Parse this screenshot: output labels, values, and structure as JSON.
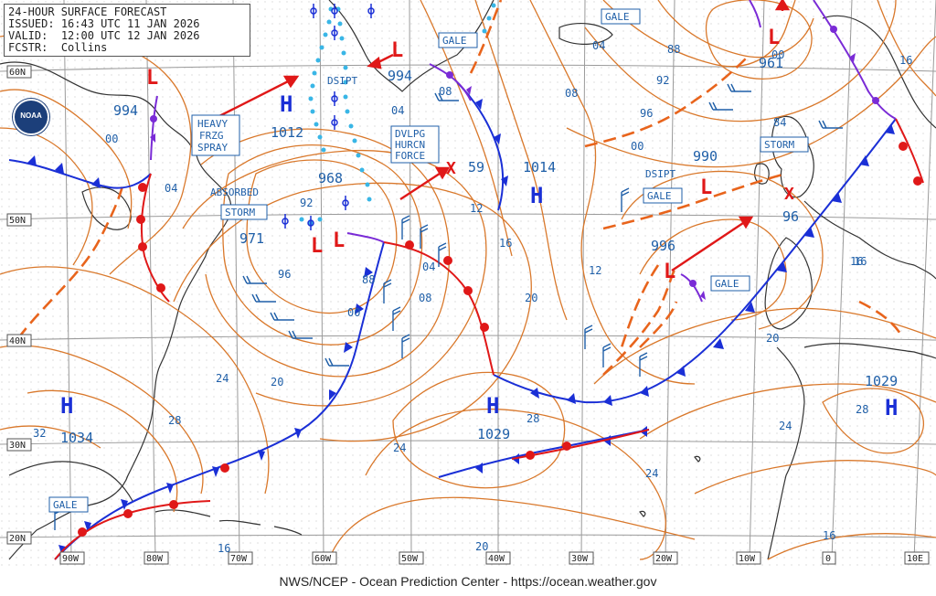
{
  "header": {
    "title": "24-HOUR SURFACE FORECAST",
    "issued_label": "ISSUED:",
    "issued": "16:43 UTC 11 JAN 2026",
    "valid_label": "VALID:",
    "valid": "12:00 UTC 12 JAN 2026",
    "fcstr_label": "FCSTR:",
    "fcstr": "Collins"
  },
  "footer": "NWS/NCEP - Ocean Prediction Center - https://ocean.weather.gov",
  "logo_text": "NOAA",
  "lat_labels": [
    "60N",
    "50N",
    "40N",
    "30N",
    "20N"
  ],
  "lon_labels": [
    "90W",
    "80W",
    "70W",
    "60W",
    "50W",
    "40W",
    "30W",
    "20W",
    "10W",
    "0",
    "10E"
  ],
  "isobar_labels": [
    "04",
    "00",
    "04",
    "24",
    "28",
    "32",
    "20",
    "16",
    "12",
    "08",
    "92",
    "96",
    "88",
    "00",
    "04",
    "08",
    "20",
    "16",
    "24",
    "28",
    "24",
    "20",
    "16",
    "04",
    "88",
    "92",
    "96",
    "00",
    "12",
    "16",
    "08",
    "84",
    "00",
    "16",
    "20",
    "24",
    "28",
    "16"
  ],
  "highs": [
    {
      "letter": "H",
      "pressure": "1012"
    },
    {
      "letter": "H",
      "pressure": "1014"
    },
    {
      "letter": "H",
      "pressure": "1034"
    },
    {
      "letter": "H",
      "pressure": "1029"
    },
    {
      "letter": "H",
      "pressure": "1029"
    }
  ],
  "lows": [
    {
      "letter": "L",
      "pressure": "994"
    },
    {
      "letter": "L",
      "pressure": "994"
    },
    {
      "letter": "L",
      "pressure": "961"
    },
    {
      "letter": "L",
      "pressure": "990"
    },
    {
      "letter": "L",
      "pressure": "996"
    },
    {
      "letter": "L",
      "pressure": "971"
    },
    {
      "letter": "L",
      "pressure": "968"
    },
    {
      "letter": "X",
      "pressure": "59"
    },
    {
      "letter": "X",
      "pressure": "96"
    }
  ],
  "warnings": {
    "gale_1": "GALE",
    "gale_2": "GALE",
    "gale_3": "GALE",
    "gale_4": "GALE",
    "gale_5": "GALE",
    "storm_1": "STORM",
    "storm_2": "STORM",
    "heavy_frzg_spray": [
      "HEAVY",
      "FRZG",
      "SPRAY"
    ],
    "dvlpg_hurcn_force": [
      "DVLPG",
      "HURCN",
      "FORCE"
    ]
  },
  "annotations": {
    "dsipt_1": "DSIPT",
    "dsipt_2": "DSIPT",
    "absorbed": "ABSORBED"
  },
  "colors": {
    "isobar": "#d9782b",
    "cold_front": "#1a2fd6",
    "warm_front": "#e01818",
    "occluded_front": "#7a2bd6",
    "trough": "#e8641c",
    "land": "#333333",
    "grid": "#a0a0a0",
    "label": "#1f5fa8",
    "ice_edge": "#39b6e6"
  }
}
